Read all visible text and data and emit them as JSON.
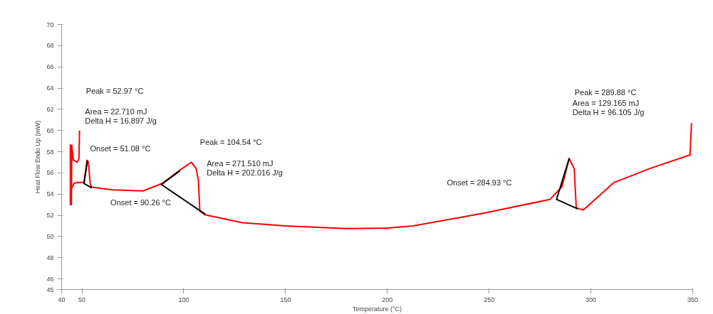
{
  "chart_data": {
    "type": "line",
    "xlabel": "Temperature (°C)",
    "ylabel": "Heat Flow Endo Up (mW)",
    "xlim": [
      40,
      350
    ],
    "xticks": [
      40,
      50,
      100,
      150,
      200,
      250,
      300,
      350
    ],
    "ylim": [
      45,
      70
    ],
    "yticks": [
      45,
      46,
      48,
      50,
      52,
      54,
      56,
      58,
      60,
      62,
      64,
      66,
      68,
      70
    ],
    "grid": false,
    "line_style": "solid",
    "marker": "none",
    "series": [
      {
        "color": "#ff0000",
        "x": [
          44.3,
          44.3,
          44.8,
          45.0,
          45.8,
          47.5,
          48.5,
          48.8
        ],
        "values": [
          58.7,
          53.0,
          53.0,
          58.6,
          57.2,
          57.0,
          57.3,
          60.0
        ]
      },
      {
        "color": "#ff0000",
        "x": [
          45.2,
          46.0,
          48.0,
          51.0,
          52.5,
          53.2,
          54.0,
          54.8,
          65.0,
          80.0,
          89.4,
          98.4,
          103.7,
          106.1,
          107.2,
          107.9,
          110.3,
          128.8,
          150.0,
          180.0,
          200.0,
          212.6,
          247.5,
          279.9,
          285.8,
          289.3,
          291.8,
          292.8,
          296.3,
          311.4,
          328.8,
          348.7,
          349.4
        ],
        "values": [
          54.6,
          55.0,
          55.1,
          55.1,
          57.2,
          57.0,
          55.0,
          54.65,
          54.4,
          54.3,
          55.0,
          56.3,
          57.0,
          56.4,
          55.3,
          52.4,
          52.05,
          51.3,
          51.0,
          50.75,
          50.8,
          51.0,
          52.2,
          53.5,
          54.7,
          57.35,
          56.4,
          52.7,
          52.5,
          55.1,
          56.4,
          57.7,
          60.7
        ]
      },
      {
        "color": "#000000",
        "x": [
          52.7,
          51.0,
          54.8
        ],
        "values": [
          57.15,
          55.0,
          54.6
        ]
      },
      {
        "color": "#000000",
        "x": [
          98.1,
          89.0,
          110.6
        ],
        "values": [
          56.2,
          54.9,
          52.1
        ]
      },
      {
        "color": "#000000",
        "x": [
          289.4,
          283.1,
          293.6
        ],
        "values": [
          57.4,
          53.5,
          52.6
        ]
      }
    ],
    "annotations": [
      "Peak = 52.97 °C",
      "Area = 22.710 mJ",
      "Delta H = 16.897 J/g",
      "Onset = 51.08 °C",
      "Peak = 104.54 °C",
      "Area = 271.510 mJ",
      "Delta H = 202.016 J/g",
      "Onset = 90.26 °C",
      "Onset = 284.93 °C",
      "Peak = 289.88 °C",
      "Area = 129.165 mJ",
      "Delta H = 96.105 J/g"
    ]
  }
}
